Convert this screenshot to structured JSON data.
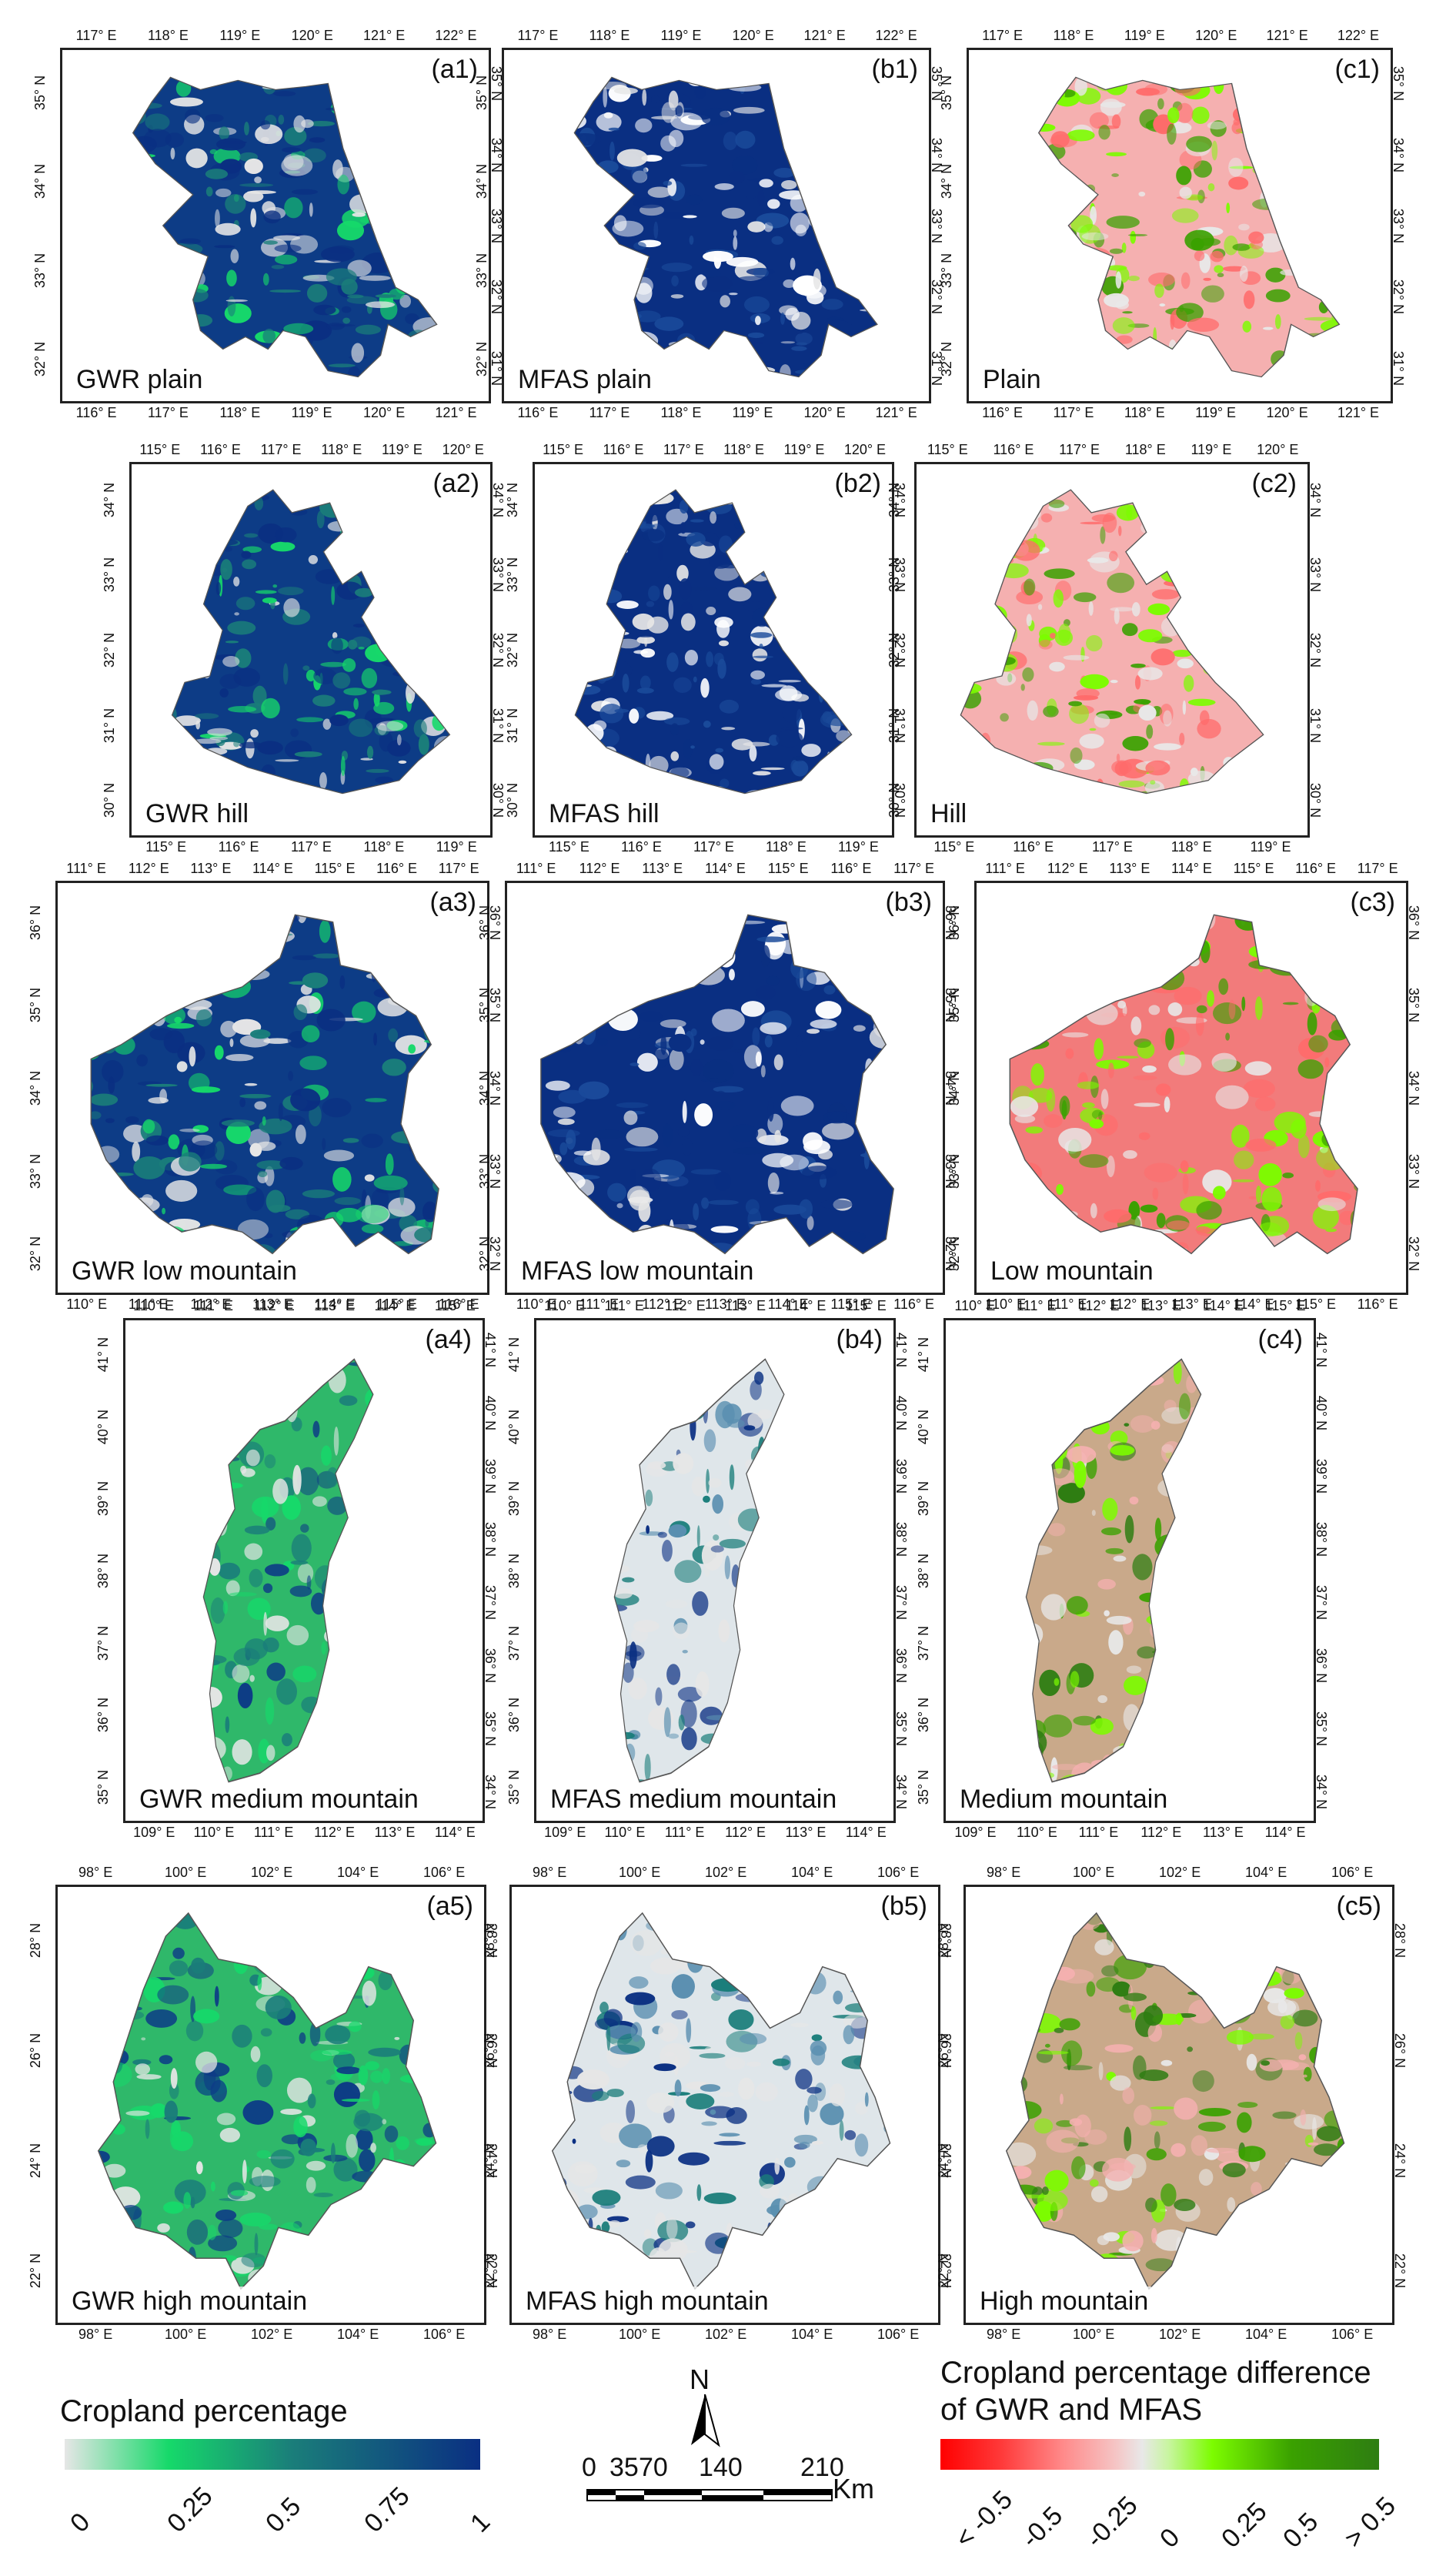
{
  "rows": [
    {
      "panels": [
        {
          "id": "(a1)",
          "label": "GWR plain",
          "kind": "gwr"
        },
        {
          "id": "(b1)",
          "label": "MFAS plain",
          "kind": "mfas"
        },
        {
          "id": "(c1)",
          "label": "Plain",
          "kind": "diff"
        }
      ],
      "lon_ticks_top": [
        [
          "117° E",
          "118° E",
          "119° E",
          "120° E",
          "121° E",
          "122° E"
        ],
        [
          "117° E",
          "118° E",
          "119° E",
          "120° E",
          "121° E",
          "122° E"
        ],
        [
          "117° E",
          "118° E",
          "119° E",
          "120° E",
          "121° E",
          "122° E"
        ]
      ],
      "lon_ticks_bottom": [
        [
          "116° E",
          "117° E",
          "118° E",
          "119° E",
          "120° E",
          "121° E"
        ],
        [
          "116° E",
          "117° E",
          "118° E",
          "119° E",
          "120° E",
          "121° E"
        ],
        [
          "116° E",
          "117° E",
          "118° E",
          "119° E",
          "120° E",
          "121° E"
        ]
      ],
      "lat_ticks_left": [
        "35° N",
        "34° N",
        "33° N",
        "32° N"
      ],
      "lat_ticks_right": [
        "35° N",
        "34° N",
        "33° N",
        "32° N",
        "31° N"
      ]
    },
    {
      "panels": [
        {
          "id": "(a2)",
          "label": "GWR hill",
          "kind": "gwr"
        },
        {
          "id": "(b2)",
          "label": "MFAS hill",
          "kind": "mfas"
        },
        {
          "id": "(c2)",
          "label": "Hill",
          "kind": "diff"
        }
      ],
      "lon_ticks_top": [
        [
          "115° E",
          "116° E",
          "117° E",
          "118° E",
          "119° E",
          "120° E"
        ],
        [
          "115° E",
          "116° E",
          "117° E",
          "118° E",
          "119° E",
          "120° E"
        ],
        [
          "115° E",
          "116° E",
          "117° E",
          "118° E",
          "119° E",
          "120° E"
        ]
      ],
      "lon_ticks_bottom": [
        [
          "115° E",
          "116° E",
          "117° E",
          "118° E",
          "119° E"
        ],
        [
          "115° E",
          "116° E",
          "117° E",
          "118° E",
          "119° E"
        ],
        [
          "115° E",
          "116° E",
          "117° E",
          "118° E",
          "119° E"
        ]
      ],
      "lat_ticks_left": [
        "34° N",
        "33° N",
        "32° N",
        "31° N",
        "30° N"
      ],
      "lat_ticks_right": [
        "34° N",
        "33° N",
        "32° N",
        "31° N",
        "30° N"
      ]
    },
    {
      "panels": [
        {
          "id": "(a3)",
          "label": "GWR low mountain",
          "kind": "gwr"
        },
        {
          "id": "(b3)",
          "label": "MFAS low mountain",
          "kind": "mfas"
        },
        {
          "id": "(c3)",
          "label": "Low mountain",
          "kind": "diff"
        }
      ],
      "lon_ticks_top": [
        [
          "111° E",
          "112° E",
          "113° E",
          "114° E",
          "115° E",
          "116° E",
          "117° E"
        ],
        [
          "111° E",
          "112° E",
          "113° E",
          "114° E",
          "115° E",
          "116° E",
          "117° E"
        ],
        [
          "111° E",
          "112° E",
          "113° E",
          "114° E",
          "115° E",
          "116° E",
          "117° E"
        ]
      ],
      "lon_ticks_bottom": [
        [
          "110° E",
          "111° E",
          "112° E",
          "113° E",
          "114° E",
          "115° E",
          "116° E"
        ],
        [
          "110° E",
          "111° E",
          "112° E",
          "113° E",
          "114° E",
          "115° E",
          "116° E"
        ],
        [
          "110° E",
          "111° E",
          "112° E",
          "113° E",
          "114° E",
          "115° E",
          "116° E"
        ]
      ],
      "lat_ticks_left": [
        "36° N",
        "35° N",
        "34° N",
        "33° N",
        "32° N"
      ],
      "lat_ticks_right": [
        "36° N",
        "35° N",
        "34° N",
        "33° N",
        "32° N"
      ]
    },
    {
      "panels": [
        {
          "id": "(a4)",
          "label": "GWR medium mountain",
          "kind": "gwr"
        },
        {
          "id": "(b4)",
          "label": "MFAS medium mountain",
          "kind": "mfas"
        },
        {
          "id": "(c4)",
          "label": "Medium mountain",
          "kind": "diff"
        }
      ],
      "lon_ticks_top": [
        [
          "110° E",
          "111° E",
          "112° E",
          "113° E",
          "114° E",
          "115° E"
        ],
        [
          "110° E",
          "111° E",
          "112° E",
          "113° E",
          "114° E",
          "115° E"
        ],
        [
          "110° E",
          "111° E",
          "112° E",
          "113° E",
          "114° E",
          "115° E"
        ]
      ],
      "lon_ticks_bottom": [
        [
          "109° E",
          "110° E",
          "111° E",
          "112° E",
          "113° E",
          "114° E"
        ],
        [
          "109° E",
          "110° E",
          "111° E",
          "112° E",
          "113° E",
          "114° E"
        ],
        [
          "109° E",
          "110° E",
          "111° E",
          "112° E",
          "113° E",
          "114° E"
        ]
      ],
      "lat_ticks_left": [
        "41° N",
        "40° N",
        "39° N",
        "38° N",
        "37° N",
        "36° N",
        "35° N"
      ],
      "lat_ticks_right": [
        "41° N",
        "40° N",
        "39° N",
        "38° N",
        "37° N",
        "36° N",
        "35° N",
        "34° N"
      ]
    },
    {
      "panels": [
        {
          "id": "",
          "label": "GWR high mountain",
          "kind": "gwr"
        },
        {
          "id": "",
          "label": "MFAS high mountain",
          "kind": "mfas"
        },
        {
          "id": "",
          "label": "High mountain",
          "kind": "diff"
        }
      ],
      "panel_ids": [
        "(a5)",
        "(b5)",
        "(c5)"
      ],
      "lon_ticks_top": [
        [
          "98° E",
          "100° E",
          "102° E",
          "104° E",
          "106° E"
        ],
        [
          "98° E",
          "100° E",
          "102° E",
          "104° E",
          "106° E"
        ],
        [
          "98° E",
          "100° E",
          "102° E",
          "104° E",
          "106° E"
        ]
      ],
      "lon_ticks_bottom": [
        [
          "98° E",
          "100° E",
          "102° E",
          "104° E",
          "106° E"
        ],
        [
          "98° E",
          "100° E",
          "102° E",
          "104° E",
          "106° E"
        ],
        [
          "98° E",
          "100° E",
          "102° E",
          "104° E",
          "106° E"
        ]
      ],
      "lat_ticks_left": [
        "28° N",
        "26° N",
        "24° N",
        "22° N"
      ],
      "lat_ticks_right": [
        "28° N",
        "26° N",
        "24° N",
        "22° N"
      ]
    }
  ],
  "legend_cropland": {
    "title": "Cropland percentage",
    "labels": [
      "0",
      "0.25",
      "0.5",
      "0.75",
      "1"
    ],
    "colors": [
      "#e6e6e6",
      "#16d96a",
      "#1a7d7a",
      "#0a2f82"
    ]
  },
  "scalebar": {
    "north": "N",
    "labels": [
      "0",
      "35",
      "70",
      "140",
      "210"
    ],
    "unit": "Km"
  },
  "legend_diff": {
    "title_line1": "Cropland percentage difference",
    "title_line2": "of GWR and MFAS",
    "labels": [
      "< -0.5",
      "-0.5",
      "-0.25",
      "0",
      "0.25",
      "0.5",
      "> 0.5"
    ],
    "colors": [
      "#ff0000",
      "#ff6b6b",
      "#f5b5b5",
      "#e8e8e8",
      "#7cfc00",
      "#3aa100",
      "#2e7d12"
    ]
  }
}
